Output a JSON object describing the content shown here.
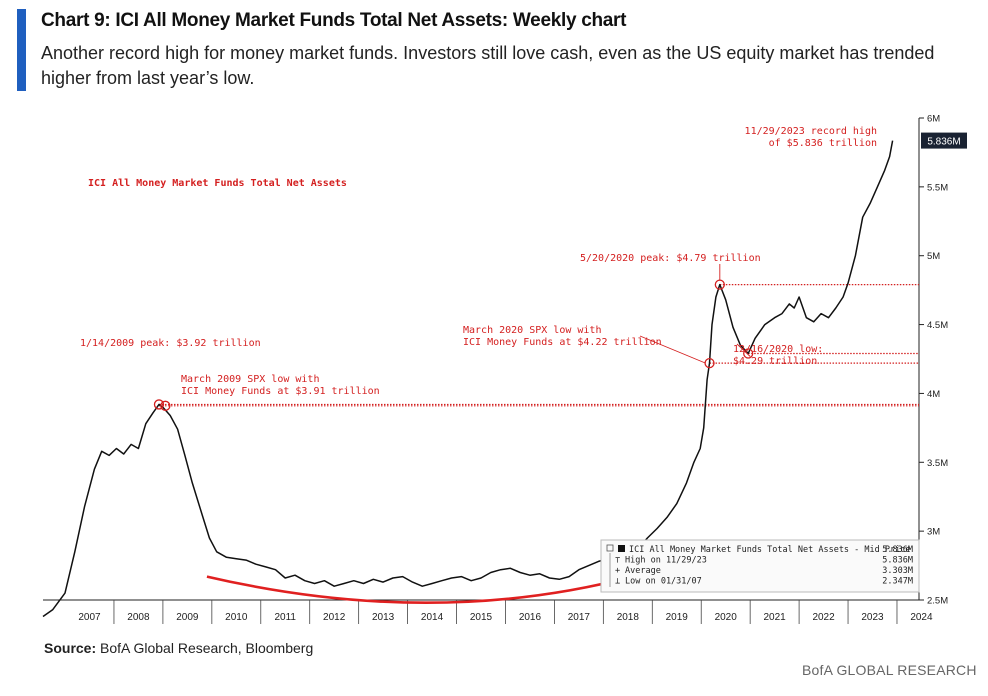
{
  "header": {
    "title": "Chart 9: ICI All Money Market Funds Total Net Assets: Weekly chart",
    "subtitle": "Another record high for money market funds. Investors still love cash, even as the US equity market has trended higher from last year’s low."
  },
  "footer": {
    "source_label": "Source:",
    "source_text": "BofA Global Research, Bloomberg",
    "brand": "BofA GLOBAL RESEARCH"
  },
  "colors": {
    "accent": "#1f5fbf",
    "line": "#111111",
    "annotation": "#d42020",
    "badge": "#1a2333"
  },
  "chart_data": {
    "type": "line",
    "title": "ICI All Money Market Funds Total Net Assets",
    "xlim": [
      2006.55,
      2024.45
    ],
    "ylim": [
      2.5,
      6.0
    ],
    "x_tick_labels": [
      "2007",
      "2008",
      "2009",
      "2010",
      "2011",
      "2012",
      "2013",
      "2014",
      "2015",
      "2016",
      "2017",
      "2018",
      "2019",
      "2020",
      "2021",
      "2022",
      "2023",
      "2024"
    ],
    "y_ticks": [
      2.5,
      3.0,
      3.5,
      4.0,
      4.5,
      5.0,
      5.5,
      6.0
    ],
    "y_tick_labels": [
      "2.5M",
      "3M",
      "3.5M",
      "4M",
      "4.5M",
      "5M",
      "5.5M",
      "6M"
    ],
    "last_value_label": "5.836M",
    "series": [
      {
        "name": "ICI All Money Market Funds Total Net Assets",
        "points": [
          [
            2006.55,
            2.38
          ],
          [
            2006.75,
            2.43
          ],
          [
            2007.0,
            2.55
          ],
          [
            2007.2,
            2.85
          ],
          [
            2007.4,
            3.18
          ],
          [
            2007.6,
            3.45
          ],
          [
            2007.75,
            3.58
          ],
          [
            2007.9,
            3.55
          ],
          [
            2008.05,
            3.6
          ],
          [
            2008.2,
            3.56
          ],
          [
            2008.35,
            3.63
          ],
          [
            2008.5,
            3.6
          ],
          [
            2008.65,
            3.78
          ],
          [
            2008.8,
            3.86
          ],
          [
            2008.92,
            3.92
          ],
          [
            2009.0,
            3.9
          ],
          [
            2009.15,
            3.84
          ],
          [
            2009.3,
            3.74
          ],
          [
            2009.45,
            3.55
          ],
          [
            2009.6,
            3.35
          ],
          [
            2009.8,
            3.12
          ],
          [
            2009.95,
            2.95
          ],
          [
            2010.1,
            2.85
          ],
          [
            2010.3,
            2.81
          ],
          [
            2010.5,
            2.8
          ],
          [
            2010.7,
            2.79
          ],
          [
            2010.9,
            2.76
          ],
          [
            2011.1,
            2.74
          ],
          [
            2011.3,
            2.72
          ],
          [
            2011.5,
            2.66
          ],
          [
            2011.7,
            2.68
          ],
          [
            2011.9,
            2.64
          ],
          [
            2012.1,
            2.62
          ],
          [
            2012.3,
            2.64
          ],
          [
            2012.5,
            2.6
          ],
          [
            2012.7,
            2.62
          ],
          [
            2012.9,
            2.64
          ],
          [
            2013.1,
            2.62
          ],
          [
            2013.3,
            2.65
          ],
          [
            2013.5,
            2.63
          ],
          [
            2013.7,
            2.66
          ],
          [
            2013.9,
            2.67
          ],
          [
            2014.1,
            2.63
          ],
          [
            2014.3,
            2.6
          ],
          [
            2014.5,
            2.62
          ],
          [
            2014.7,
            2.64
          ],
          [
            2014.9,
            2.66
          ],
          [
            2015.1,
            2.67
          ],
          [
            2015.3,
            2.64
          ],
          [
            2015.5,
            2.66
          ],
          [
            2015.7,
            2.7
          ],
          [
            2015.9,
            2.72
          ],
          [
            2016.1,
            2.73
          ],
          [
            2016.3,
            2.7
          ],
          [
            2016.5,
            2.68
          ],
          [
            2016.7,
            2.69
          ],
          [
            2016.9,
            2.66
          ],
          [
            2017.1,
            2.65
          ],
          [
            2017.3,
            2.67
          ],
          [
            2017.5,
            2.72
          ],
          [
            2017.7,
            2.75
          ],
          [
            2017.9,
            2.78
          ],
          [
            2018.1,
            2.8
          ],
          [
            2018.3,
            2.79
          ],
          [
            2018.5,
            2.83
          ],
          [
            2018.7,
            2.87
          ],
          [
            2018.9,
            2.95
          ],
          [
            2019.1,
            3.02
          ],
          [
            2019.3,
            3.1
          ],
          [
            2019.5,
            3.2
          ],
          [
            2019.7,
            3.35
          ],
          [
            2019.85,
            3.5
          ],
          [
            2019.98,
            3.6
          ],
          [
            2020.05,
            3.75
          ],
          [
            2020.12,
            4.1
          ],
          [
            2020.17,
            4.22
          ],
          [
            2020.22,
            4.5
          ],
          [
            2020.3,
            4.7
          ],
          [
            2020.38,
            4.79
          ],
          [
            2020.5,
            4.68
          ],
          [
            2020.65,
            4.48
          ],
          [
            2020.8,
            4.35
          ],
          [
            2020.96,
            4.29
          ],
          [
            2021.1,
            4.4
          ],
          [
            2021.3,
            4.5
          ],
          [
            2021.5,
            4.55
          ],
          [
            2021.65,
            4.58
          ],
          [
            2021.8,
            4.65
          ],
          [
            2021.9,
            4.62
          ],
          [
            2022.0,
            4.7
          ],
          [
            2022.15,
            4.55
          ],
          [
            2022.3,
            4.52
          ],
          [
            2022.45,
            4.58
          ],
          [
            2022.6,
            4.55
          ],
          [
            2022.75,
            4.62
          ],
          [
            2022.9,
            4.7
          ],
          [
            2023.0,
            4.8
          ],
          [
            2023.15,
            5.0
          ],
          [
            2023.3,
            5.28
          ],
          [
            2023.45,
            5.38
          ],
          [
            2023.6,
            5.5
          ],
          [
            2023.75,
            5.62
          ],
          [
            2023.85,
            5.72
          ],
          [
            2023.91,
            5.836
          ]
        ]
      }
    ],
    "trend_arc": [
      [
        2009.9,
        2.67
      ],
      [
        2014.5,
        2.45
      ],
      [
        2018.6,
        2.67
      ]
    ],
    "reference_lines": [
      {
        "value": 4.79,
        "from": 2020.38
      },
      {
        "value": 4.29,
        "from": 2020.96
      },
      {
        "value": 4.22,
        "from": 2020.17
      },
      {
        "value": 3.92,
        "from": 2008.92
      },
      {
        "value": 3.91,
        "from": 2008.92
      }
    ],
    "markers": [
      [
        2008.92,
        3.92
      ],
      [
        2009.05,
        3.91
      ],
      [
        2020.17,
        4.22
      ],
      [
        2020.38,
        4.79
      ],
      [
        2020.96,
        4.29
      ]
    ],
    "annotations": [
      {
        "lines": [
          "ICI All Money Market Funds Total Net Assets"
        ],
        "bold": true
      },
      {
        "lines": [
          "11/29/2023 record high",
          "of $5.836 trillion"
        ]
      },
      {
        "lines": [
          "5/20/2020 peak: $4.79 trillion"
        ]
      },
      {
        "lines": [
          "March 2020 SPX low with",
          "ICI Money Funds at $4.22 trillion"
        ]
      },
      {
        "lines": [
          "12/16/2020 low:",
          "$4.29 trillion"
        ]
      },
      {
        "lines": [
          "1/14/2009 peak: $3.92 trillion"
        ]
      },
      {
        "lines": [
          "March 2009 SPX low with",
          "ICI Money Funds at $3.91 trillion"
        ]
      }
    ],
    "legend": {
      "placement": "bottom-right",
      "rows": [
        {
          "label": "ICI All Money Market Funds Total Net Assets - Mid Price",
          "value": "5.836M"
        },
        {
          "label": "High on 11/29/23",
          "value": "5.836M"
        },
        {
          "label": "Average",
          "value": "3.303M"
        },
        {
          "label": "Low on 01/31/07",
          "value": "2.347M"
        }
      ]
    }
  }
}
